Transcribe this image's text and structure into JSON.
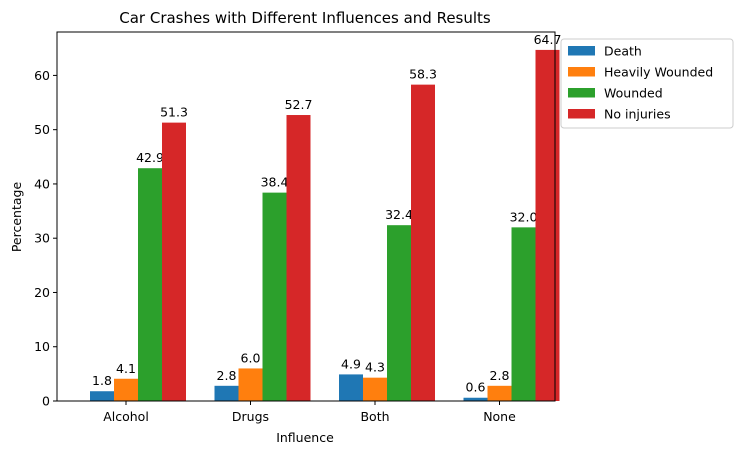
{
  "chart_data": {
    "type": "bar",
    "title": "Car Crashes with Different Influences and Results",
    "xlabel": "Influence",
    "ylabel": "Percentage",
    "categories": [
      "Alcohol",
      "Drugs",
      "Both",
      "None"
    ],
    "ylim": [
      0,
      68
    ],
    "yticks": [
      0,
      10,
      20,
      30,
      40,
      50,
      60
    ],
    "grid": false,
    "legend_placement": "outside-top-right",
    "series": [
      {
        "name": "Death",
        "color": "#1f77b4",
        "values": [
          1.8,
          2.8,
          4.9,
          0.6
        ],
        "labels": [
          "1.8",
          "2.8",
          "4.9",
          "0.6"
        ]
      },
      {
        "name": "Heavily Wounded",
        "color": "#ff7f0e",
        "values": [
          4.1,
          6.0,
          4.3,
          2.8
        ],
        "labels": [
          "4.1",
          "6.0",
          "4.3",
          "2.8"
        ]
      },
      {
        "name": "Wounded",
        "color": "#2ca02c",
        "values": [
          42.9,
          38.4,
          32.4,
          32.0
        ],
        "labels": [
          "42.9",
          "38.4",
          "32.4",
          "32.0"
        ]
      },
      {
        "name": "No injuries",
        "color": "#d62728",
        "values": [
          51.3,
          52.7,
          58.3,
          64.7
        ],
        "labels": [
          "51.3",
          "52.7",
          "58.3",
          "64.7"
        ]
      }
    ]
  }
}
